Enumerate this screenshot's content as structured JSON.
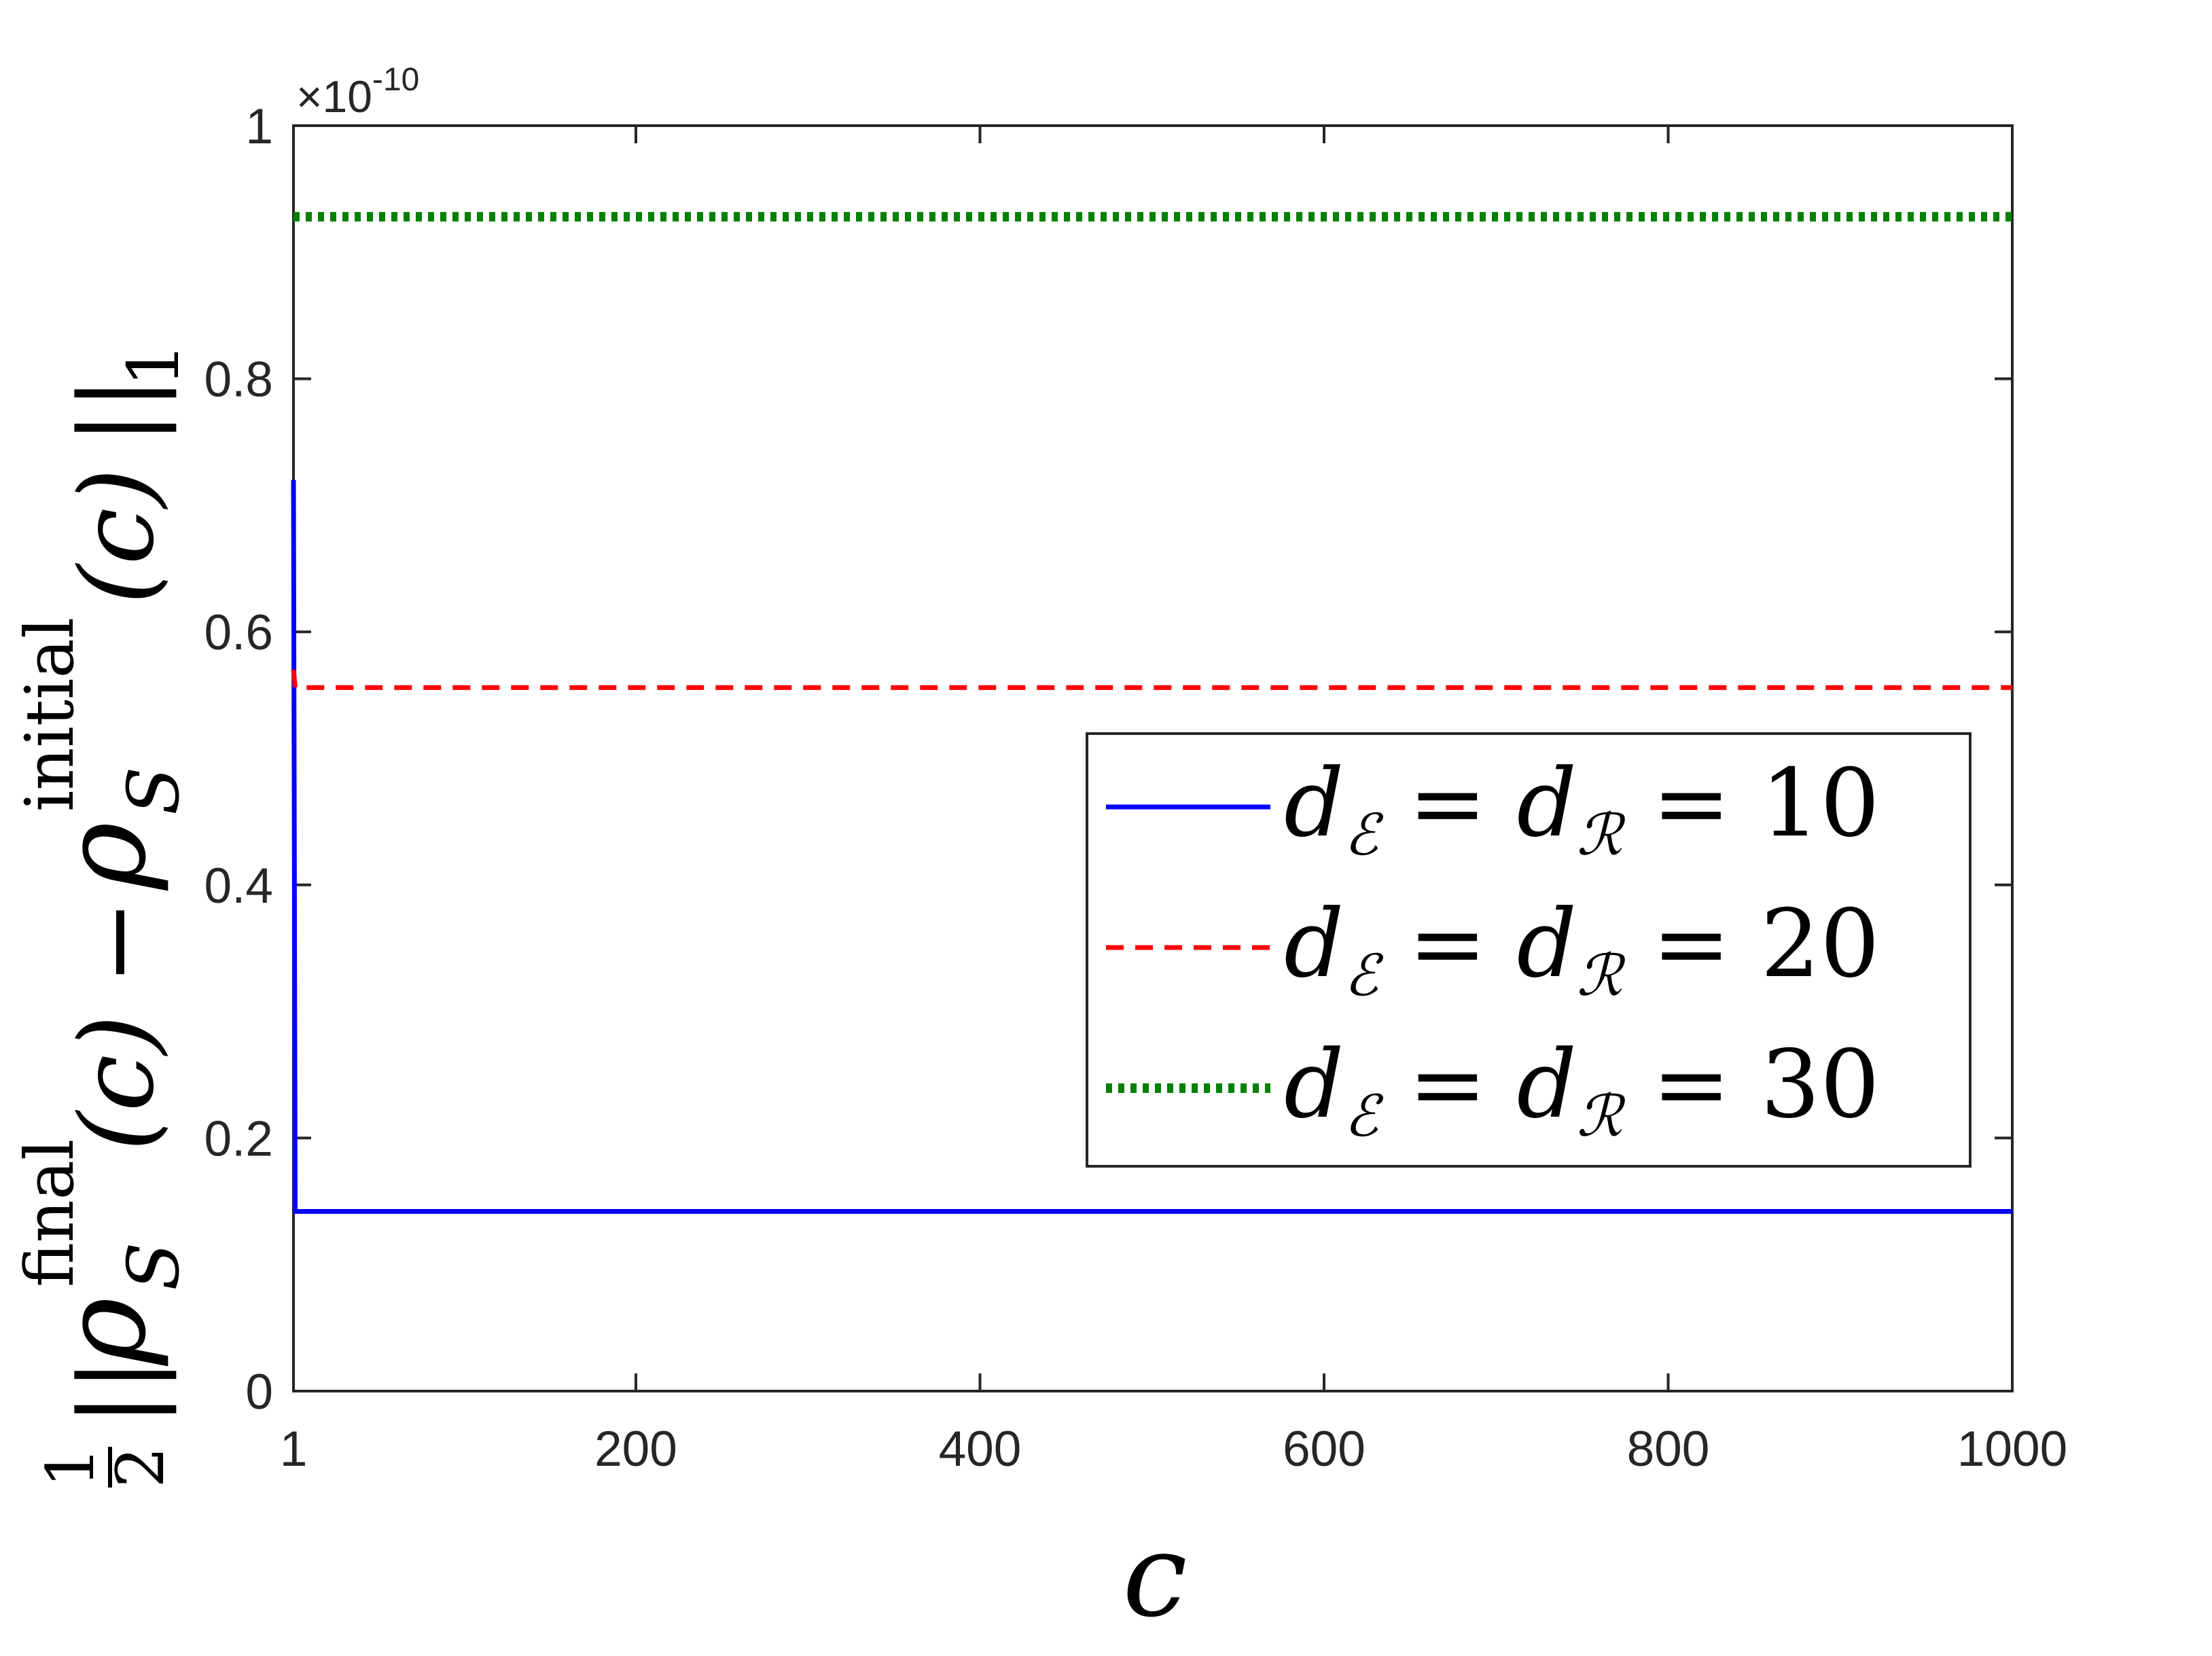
{
  "chart_data": {
    "type": "line",
    "xlabel": "c",
    "ylabel_parts": {
      "frac_num": "1",
      "frac_den": "2",
      "norm_open": "||",
      "rho": "ρ",
      "sub": "S",
      "sup_final": "final",
      "sup_initial": "initial",
      "arg": "(c)",
      "minus": "−",
      "norm_close": "||",
      "norm_sub": "1"
    },
    "y_exponent": {
      "prefix": "×10",
      "power": "-10"
    },
    "xlim": [
      1,
      1000
    ],
    "ylim": [
      0,
      1
    ],
    "x_ticks": [
      1,
      200,
      400,
      600,
      800,
      1000
    ],
    "y_ticks": [
      0,
      0.2,
      0.4,
      0.6,
      0.8,
      1
    ],
    "x_tick_labels": [
      "1",
      "200",
      "400",
      "600",
      "800",
      "1000"
    ],
    "y_tick_labels": [
      "0",
      "0.2",
      "0.4",
      "0.6",
      "0.8",
      "1"
    ],
    "grid": false,
    "legend_position": "right, middle",
    "series": [
      {
        "name_parts": {
          "d": "d",
          "sub1": "ℰ",
          "eq": "=",
          "sub2": "ℛ",
          "value": "10"
        },
        "color": "#0000ff",
        "style": "solid",
        "x": [
          1,
          2,
          3,
          1000
        ],
        "y": [
          0.72,
          0.142,
          0.142,
          0.142
        ]
      },
      {
        "name_parts": {
          "d": "d",
          "sub1": "ℰ",
          "eq": "=",
          "sub2": "ℛ",
          "value": "20"
        },
        "color": "#ff0000",
        "style": "dashed",
        "x": [
          1,
          2,
          3,
          1000
        ],
        "y": [
          0.57,
          0.556,
          0.556,
          0.556
        ]
      },
      {
        "name_parts": {
          "d": "d",
          "sub1": "ℰ",
          "eq": "=",
          "sub2": "ℛ",
          "value": "30"
        },
        "color": "#008000",
        "style": "dotted",
        "x": [
          1,
          1000
        ],
        "y": [
          0.928,
          0.928
        ]
      }
    ]
  }
}
